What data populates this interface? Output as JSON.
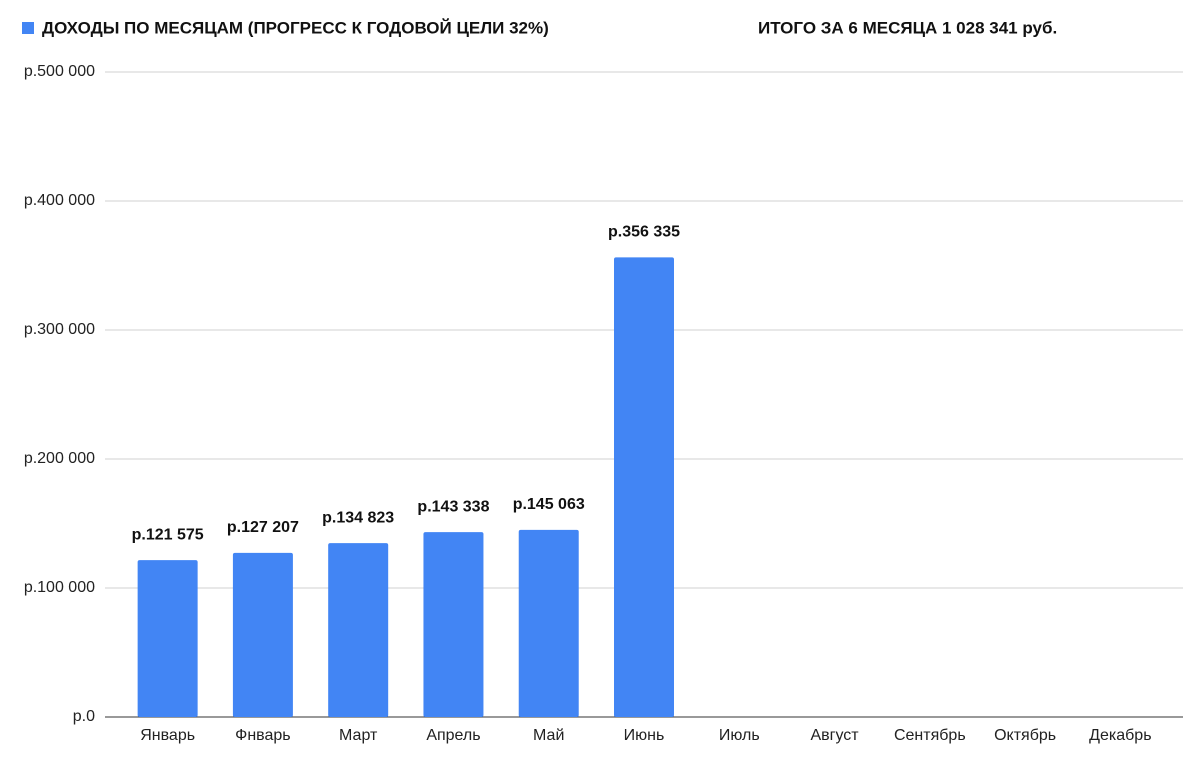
{
  "chart_data": {
    "type": "bar",
    "annotation": "ИТОГО ЗА 6 МЕСЯЦА 1 028 341 руб.",
    "categories": [
      "Январь",
      "Фнварь",
      "Март",
      "Апрель",
      "Май",
      "Июнь",
      "Июль",
      "Август",
      "Сентябрь",
      "Октябрь",
      "Декабрь"
    ],
    "series": [
      {
        "name": "ДОХОДЫ ПО МЕСЯЦАМ (ПРОГРЕСС К ГОДОВОЙ ЦЕЛИ 32%)",
        "color": "#4285f4",
        "values": [
          121575,
          127207,
          134823,
          143338,
          145063,
          356335,
          null,
          null,
          null,
          null,
          null
        ],
        "value_labels": [
          "р.121 575",
          "р.127 207",
          "р.134 823",
          "р.143 338",
          "р.145 063",
          "р.356 335",
          null,
          null,
          null,
          null,
          null
        ]
      }
    ],
    "ylim": [
      0,
      500000
    ],
    "yticks": [
      {
        "value": 0,
        "label": "р.0"
      },
      {
        "value": 100000,
        "label": "р.100 000"
      },
      {
        "value": 200000,
        "label": "р.200 000"
      },
      {
        "value": 300000,
        "label": "р.300 000"
      },
      {
        "value": 400000,
        "label": "р.400 000"
      },
      {
        "value": 500000,
        "label": "р.500 000"
      }
    ],
    "grid": true,
    "legend": "top-left"
  }
}
